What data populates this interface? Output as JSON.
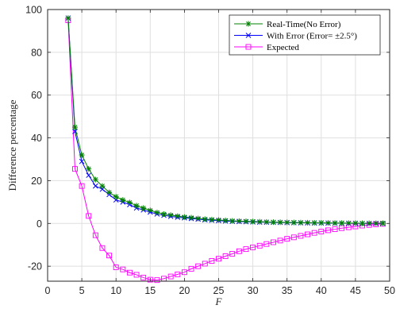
{
  "chart_data": {
    "type": "line",
    "xlabel": "F",
    "ylabel": "Difference percentage",
    "xlim": [
      0,
      50
    ],
    "ylim": [
      -27,
      100
    ],
    "xticks": [
      0,
      5,
      10,
      15,
      20,
      25,
      30,
      35,
      40,
      45,
      50
    ],
    "yticks": [
      -20,
      0,
      20,
      40,
      60,
      80,
      100
    ],
    "xtick_labels": [
      "0",
      "5",
      "10",
      "15",
      "20",
      "25",
      "30",
      "35",
      "40",
      "45",
      "50"
    ],
    "ytick_labels": [
      "-20",
      "0",
      "20",
      "40",
      "60",
      "80",
      "100"
    ],
    "grid": true,
    "legend_position": "top-right",
    "x": [
      3,
      4,
      5,
      6,
      7,
      8,
      9,
      10,
      11,
      12,
      13,
      14,
      15,
      16,
      17,
      18,
      19,
      20,
      21,
      22,
      23,
      24,
      25,
      26,
      27,
      28,
      29,
      30,
      31,
      32,
      33,
      34,
      35,
      36,
      37,
      38,
      39,
      40,
      41,
      42,
      43,
      44,
      45,
      46,
      47,
      48,
      49
    ],
    "series": [
      {
        "name": "Real-Time(No Error)",
        "color": "#008000",
        "marker": "asterisk",
        "values": [
          96,
          45,
          32,
          25.5,
          20.5,
          17.5,
          14.5,
          12.5,
          11,
          9.8,
          8.3,
          7.2,
          6.1,
          5.1,
          4.4,
          3.9,
          3.4,
          3,
          2.7,
          2.3,
          2,
          1.8,
          1.6,
          1.4,
          1.2,
          1.1,
          1,
          0.9,
          0.8,
          0.7,
          0.6,
          0.55,
          0.5,
          0.45,
          0.4,
          0.35,
          0.3,
          0.3,
          0.25,
          0.2,
          0.2,
          0.15,
          0.15,
          0.1,
          0.1,
          0.1,
          0.1
        ]
      },
      {
        "name": "With Error (Error= ±2.5°)",
        "color": "#0000ff",
        "marker": "x",
        "values": [
          96,
          43,
          29,
          22.5,
          17.5,
          16,
          13.5,
          11,
          10,
          8.8,
          7.2,
          6.3,
          5.3,
          4.4,
          3.8,
          3.3,
          2.9,
          2.6,
          2.3,
          2,
          1.7,
          1.5,
          1.3,
          1.1,
          1,
          0.9,
          0.8,
          0.7,
          0.6,
          0.55,
          0.5,
          0.45,
          0.4,
          0.35,
          0.3,
          0.25,
          0.2,
          0.2,
          0.15,
          0.1,
          0.1,
          0.05,
          0.05,
          0,
          0,
          0,
          0
        ]
      },
      {
        "name": "Expected",
        "color": "#ff00ff",
        "marker": "square",
        "values": [
          95,
          25.5,
          17.5,
          3.5,
          -5.5,
          -11.5,
          -15,
          -20.5,
          -21.5,
          -23,
          -24,
          -25.3,
          -26.3,
          -26.5,
          -25.8,
          -24.8,
          -23.8,
          -22.8,
          -21.2,
          -20,
          -18.8,
          -17.5,
          -16.5,
          -15.3,
          -14.2,
          -13,
          -12,
          -11.2,
          -10.4,
          -9.6,
          -8.8,
          -8,
          -7.2,
          -6.5,
          -5.8,
          -5.1,
          -4.4,
          -3.8,
          -3.2,
          -2.7,
          -2.2,
          -1.8,
          -1.4,
          -1,
          -0.7,
          -0.4,
          -0.2
        ]
      }
    ]
  }
}
